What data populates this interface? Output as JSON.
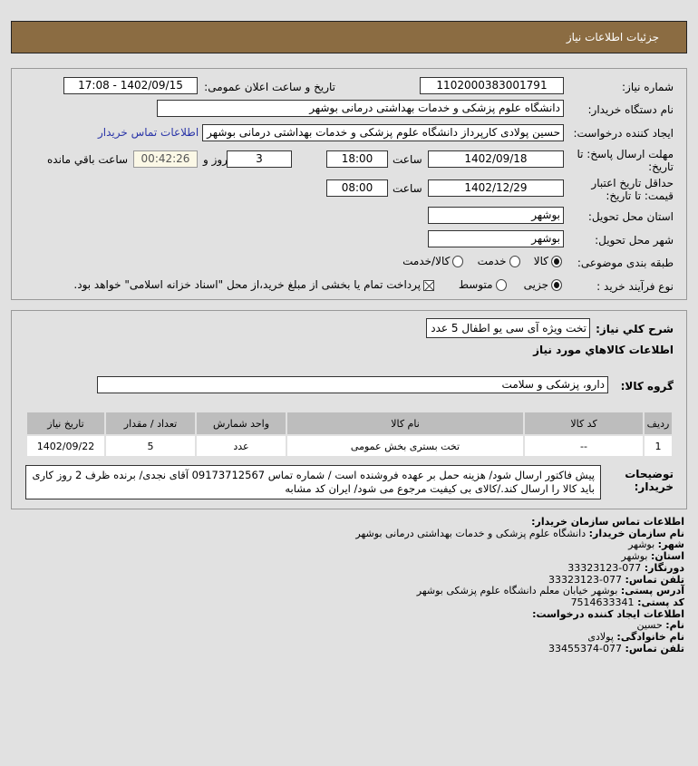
{
  "header": {
    "title": "جزئیات اطلاعات نیاز"
  },
  "form": {
    "need_number_label": "شماره نیاز:",
    "need_number": "1102000383001791",
    "announce_label": "تاریخ و ساعت اعلان عمومی:",
    "announce_value": "1402/09/15 - 17:08",
    "buyer_label": "نام دستگاه خریدار:",
    "buyer_value": "دانشگاه علوم پزشکی و خدمات بهداشتی درمانی بوشهر",
    "creator_label": "ایجاد کننده درخواست:",
    "creator_value": "حسین پولادی کارپرداز دانشگاه علوم پزشکی و خدمات بهداشتی درمانی بوشهر",
    "contact_link": "اطلاعات تماس خریدار",
    "deadline_label_1": "مهلت ارسال پاسخ: تا",
    "deadline_label_2": "تاریخ:",
    "deadline_date": "1402/09/18",
    "time_label": "ساعت",
    "deadline_time": "18:00",
    "days": "3",
    "days_label": "روز و",
    "remaining": "00:42:26",
    "remaining_label": "ساعت باقي مانده",
    "validity_label_1": "حداقل تاریخ اعتبار",
    "validity_label_2": "قیمت: تا تاریخ:",
    "validity_date": "1402/12/29",
    "validity_time": "08:00",
    "province_label": "استان محل تحویل:",
    "province": "بوشهر",
    "city_label": "شهر محل تحویل:",
    "city": "بوشهر",
    "category_label": "طبقه بندی موضوعی:",
    "category_options": [
      "کالا",
      "خدمت",
      "کالا/خدمت"
    ],
    "category_selected": 0,
    "process_label": "نوع فرآیند خرید :",
    "process_options": [
      "جزیی",
      "متوسط"
    ],
    "process_selected": 0,
    "payment_note": "پرداخت تمام یا بخشی از مبلغ خرید،از محل \"اسناد خزانه اسلامی\" خواهد بود."
  },
  "needs": {
    "summary_label": "شرح کلي نياز:",
    "summary": "تخت ویژه آی سی یو اطفال 5 عدد",
    "goods_heading": "اطلاعات کالاهاي مورد نياز",
    "group_label": "گروه کالا:",
    "group": "دارو، پزشکی و سلامت",
    "columns": [
      "ردیف",
      "کد کالا",
      "نام کالا",
      "واحد شمارش",
      "تعداد / مقدار",
      "تاریخ نیاز"
    ],
    "rows": [
      [
        "1",
        "--",
        "تخت بستری بخش عمومی",
        "عدد",
        "5",
        "1402/09/22"
      ]
    ],
    "notes_label": "توضیحات خریدار:",
    "notes": "پیش فاکتور ارسال شود/ هزینه حمل بر عهده فروشنده است / شماره تماس 09173712567 آقای نجدی/ برنده ظرف 2 روز کاری باید کالا را ارسال کند./کالای بی کیفیت مرجوع می شود/ ایران کد مشابه"
  },
  "contact": {
    "org_heading": "اطلاعات تماس سازمان خریدار:",
    "org_name_label": "نام سازمان خریدار:",
    "org_name": "دانشگاه علوم پزشکی و خدمات بهداشتی درمانی بوشهر",
    "city_label": "شهر:",
    "city": "بوشهر",
    "province_label": "استان:",
    "province": "بوشهر",
    "fax_label": "دورنگار:",
    "fax": "077-33323123",
    "phone_label": "تلفن تماس:",
    "phone": "077-33323123",
    "address_label": "آدرس پستی:",
    "address": "بوشهر خیابان معلم دانشگاه علوم پزشکی بوشهر",
    "postal_label": "کد پستی:",
    "postal": "7514633341",
    "creator_heading": "اطلاعات ایجاد کننده درخواست:",
    "first_name_label": "نام:",
    "first_name": "حسین",
    "last_name_label": "نام خانوادگی:",
    "last_name": "پولادی",
    "creator_phone_label": "تلفن تماس:",
    "creator_phone": "077-33455374"
  }
}
